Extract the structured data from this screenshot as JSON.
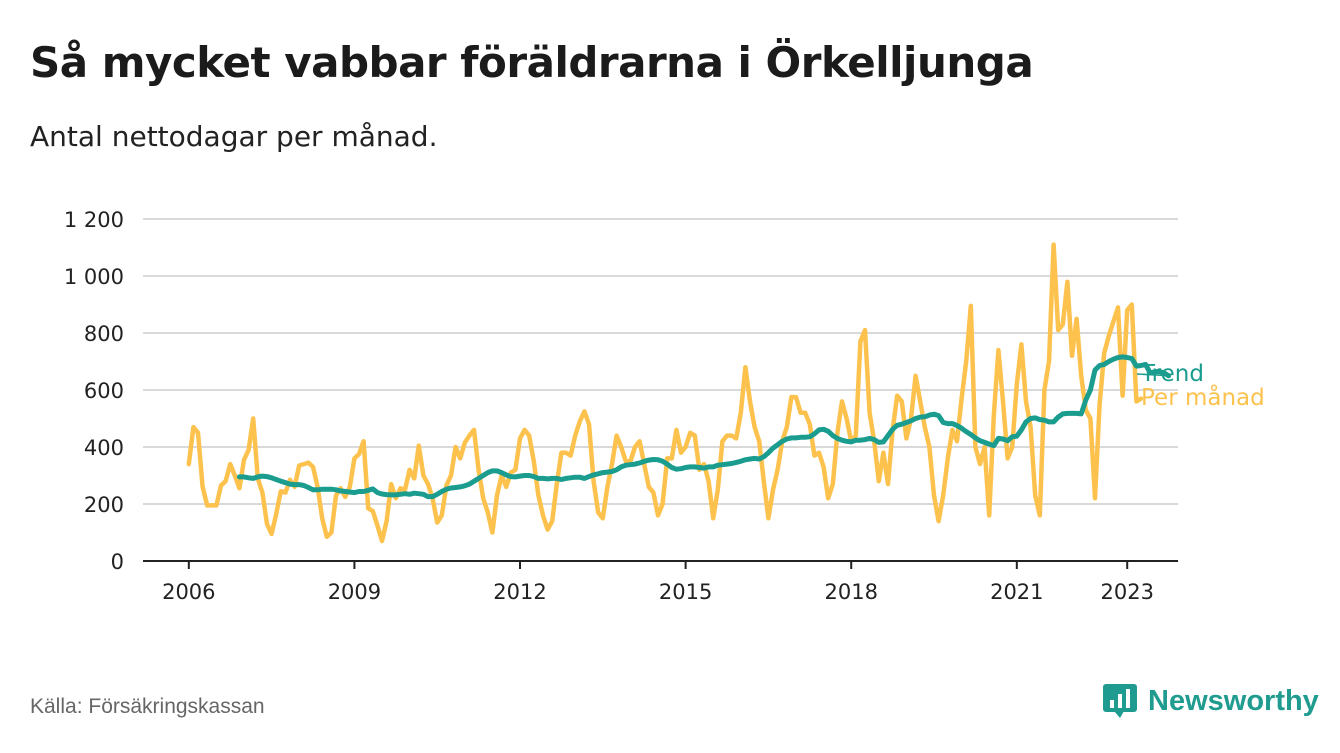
{
  "title": "Så mycket vabbar föräldrarna i Örkelljunga",
  "subtitle": "Antal nettodagar per månad.",
  "source": "Källa: Försäkringskassan",
  "brand": {
    "name": "Newsworthy",
    "icon": "newsworthy-logo-icon"
  },
  "colors": {
    "trend": "#1a9c8e",
    "monthly": "#fcc24d",
    "grid": "#d9d9d9",
    "axis": "#222222"
  },
  "chart_data": {
    "type": "line",
    "title": "Så mycket vabbar föräldrarna i Örkelljunga",
    "subtitle": "Antal nettodagar per månad.",
    "xlabel": "",
    "ylabel": "",
    "ylim": [
      0,
      1200
    ],
    "xlim": [
      2005.17,
      2023.92
    ],
    "y_ticks": [
      0,
      200,
      400,
      600,
      800,
      1000,
      1200
    ],
    "y_tick_labels": [
      "0",
      "200",
      "400",
      "600",
      "800",
      "1 000",
      "1 200"
    ],
    "x_ticks": [
      2006,
      2009,
      2012,
      2015,
      2018,
      2021,
      2023
    ],
    "x_tick_labels": [
      "2006",
      "2009",
      "2012",
      "2015",
      "2018",
      "2021",
      "2023"
    ],
    "grid": true,
    "legend": "direct labels at right end of lines",
    "series": [
      {
        "name": "Per månad",
        "color": "#fcc24d",
        "x_start": 2006.0,
        "x_step_months": 1,
        "values": [
          340,
          470,
          450,
          260,
          195,
          195,
          195,
          265,
          280,
          340,
          300,
          255,
          355,
          390,
          500,
          290,
          240,
          130,
          95,
          165,
          245,
          240,
          285,
          260,
          335,
          340,
          345,
          330,
          260,
          150,
          85,
          100,
          230,
          255,
          225,
          260,
          360,
          375,
          420,
          185,
          175,
          125,
          70,
          140,
          270,
          220,
          255,
          250,
          320,
          290,
          405,
          300,
          270,
          220,
          135,
          160,
          265,
          300,
          400,
          360,
          415,
          440,
          460,
          320,
          220,
          170,
          100,
          230,
          300,
          260,
          310,
          320,
          430,
          460,
          440,
          350,
          230,
          160,
          110,
          140,
          270,
          380,
          380,
          370,
          440,
          490,
          525,
          480,
          280,
          170,
          150,
          260,
          340,
          440,
          400,
          350,
          350,
          400,
          420,
          340,
          260,
          240,
          160,
          200,
          360,
          360,
          460,
          380,
          400,
          450,
          440,
          320,
          340,
          280,
          150,
          250,
          420,
          440,
          440,
          430,
          520,
          680,
          560,
          470,
          420,
          280,
          150,
          250,
          320,
          420,
          470,
          575,
          575,
          520,
          520,
          480,
          370,
          380,
          330,
          220,
          270,
          450,
          560,
          500,
          420,
          440,
          770,
          810,
          520,
          420,
          280,
          380,
          270,
          460,
          580,
          560,
          430,
          500,
          650,
          560,
          470,
          400,
          230,
          140,
          230,
          360,
          460,
          420,
          570,
          700,
          895,
          400,
          340,
          400,
          160,
          510,
          740,
          560,
          360,
          400,
          620,
          760,
          560,
          470,
          230,
          160,
          600,
          700,
          1110,
          810,
          830,
          980,
          720,
          850,
          650,
          530,
          500,
          220,
          550,
          730,
          790,
          840,
          890,
          580,
          880,
          900,
          560,
          570
        ],
        "label_at_end": "Per månad"
      },
      {
        "name": "Trend",
        "color": "#1a9c8e",
        "x_start": 2006.917,
        "x_step_months": 1,
        "values": [
          295,
          295,
          292,
          290,
          295,
          298,
          296,
          292,
          286,
          280,
          275,
          270,
          268,
          268,
          265,
          258,
          250,
          250,
          252,
          252,
          252,
          250,
          246,
          244,
          242,
          240,
          244,
          244,
          248,
          253,
          240,
          235,
          233,
          232,
          232,
          234,
          236,
          234,
          238,
          236,
          234,
          226,
          226,
          234,
          244,
          252,
          256,
          258,
          260,
          264,
          270,
          280,
          290,
          300,
          310,
          316,
          316,
          310,
          302,
          296,
          295,
          298,
          300,
          300,
          296,
          290,
          290,
          288,
          290,
          290,
          286,
          290,
          292,
          294,
          294,
          290,
          296,
          302,
          306,
          310,
          312,
          314,
          320,
          330,
          336,
          338,
          340,
          344,
          350,
          354,
          356,
          355,
          350,
          340,
          328,
          322,
          324,
          328,
          330,
          330,
          328,
          326,
          330,
          330,
          336,
          338,
          340,
          342,
          346,
          350,
          355,
          358,
          360,
          358,
          366,
          380,
          396,
          408,
          420,
          428,
          432,
          432,
          434,
          434,
          436,
          446,
          460,
          462,
          455,
          440,
          430,
          424,
          420,
          418,
          424,
          424,
          426,
          430,
          426,
          416,
          418,
          440,
          462,
          476,
          480,
          486,
          492,
          500,
          505,
          506,
          512,
          515,
          510,
          486,
          482,
          482,
          475,
          466,
          454,
          444,
          432,
          422,
          416,
          410,
          405,
          430,
          428,
          422,
          436,
          438,
          460,
          488,
          500,
          502,
          496,
          494,
          488,
          488,
          505,
          516,
          518,
          518,
          518,
          516,
          565,
          600,
          670,
          686,
          690,
          700,
          708,
          714,
          716,
          714,
          710,
          684,
          686,
          690,
          660,
          664,
          665,
          660,
          650
        ],
        "label_at_end": "Trend"
      }
    ]
  }
}
